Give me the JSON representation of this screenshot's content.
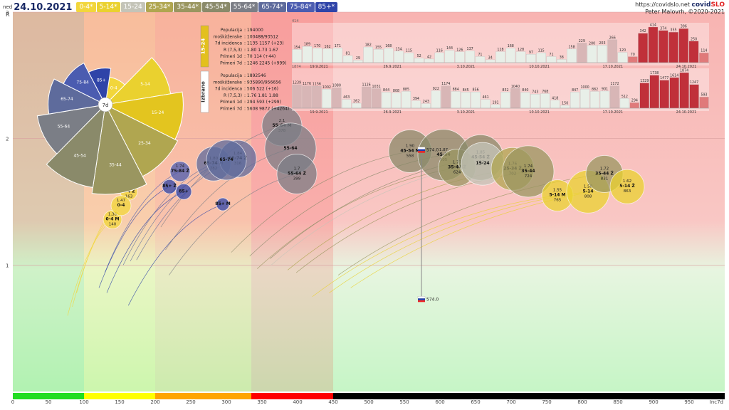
{
  "header": {
    "day": "ned",
    "date": "24.10.2021",
    "age_chips": [
      {
        "label": "0-4*",
        "color": "#f2d63b",
        "fg": "#fff"
      },
      {
        "label": "5-14*",
        "color": "#ead12f",
        "fg": "#fff"
      },
      {
        "label": "15-24",
        "color": "#c4c4b8",
        "fg": "#fff"
      },
      {
        "label": "25-34*",
        "color": "#b0a650",
        "fg": "#fff"
      },
      {
        "label": "35-44*",
        "color": "#9a9660",
        "fg": "#fff"
      },
      {
        "label": "45-54*",
        "color": "#8a8a6a",
        "fg": "#fff"
      },
      {
        "label": "55-64*",
        "color": "#7b7e86",
        "fg": "#fff"
      },
      {
        "label": "65-74*",
        "color": "#5e6b9c",
        "fg": "#fff"
      },
      {
        "label": "75-84*",
        "color": "#4b5cb0",
        "fg": "#fff"
      },
      {
        "label": "85+*",
        "color": "#2f44a8",
        "fg": "#fff"
      }
    ],
    "url": "https://covidslo.net",
    "brand_main": "covid",
    "brand_accent": "SLO",
    "author": "Peter Malovrh, ©2020-2021"
  },
  "chart_data": {
    "type": "scatter",
    "x_axis_label": "Inc7d",
    "y_axis_label": "R",
    "xlim": [
      0,
      1000
    ],
    "ylim": [
      0,
      3
    ],
    "x_ticks": [
      0,
      50,
      100,
      150,
      200,
      250,
      300,
      350,
      400,
      450,
      500,
      550,
      600,
      650,
      700,
      750,
      800,
      850,
      900,
      950
    ],
    "y_ticks": [
      1,
      2,
      3
    ],
    "colors": {
      "r_high": "#f7b0b0",
      "r_low": "#cdf5cd",
      "green": "#22dd22",
      "yellow": "#ffff00",
      "orange": "#ffa500",
      "red": "#ff0000",
      "black": "#000000"
    },
    "incidence_bands": [
      {
        "from": 0,
        "to": 100,
        "color": "#22dd22"
      },
      {
        "from": 100,
        "to": 200,
        "color": "#ffff00"
      },
      {
        "from": 200,
        "to": 335,
        "color": "#ffa500"
      },
      {
        "from": 335,
        "to": 450,
        "color": "#ff0000"
      },
      {
        "from": 450,
        "to": 1000,
        "color": "#000000"
      }
    ],
    "bubbles": [
      {
        "label": "0-4 M",
        "r_value": "1.36",
        "inc": "140",
        "x": 140,
        "y": 1.36,
        "size": 13,
        "color": "#f2d63b"
      },
      {
        "label": "0-4 Ž",
        "r_value": "1.58",
        "inc": "163",
        "x": 163,
        "y": 1.58,
        "size": 12,
        "color": "#f2d63b"
      },
      {
        "label": "0-4",
        "r_value": "1.47",
        "inc": "",
        "x": 152,
        "y": 1.47,
        "size": 14,
        "color": "#f2d63b"
      },
      {
        "label": "75-84 Ž",
        "r_value": "1.74",
        "inc": "",
        "x": 235,
        "y": 1.74,
        "size": 14,
        "color": "#4b5cb0"
      },
      {
        "label": "85+ Ž",
        "r_value": "",
        "inc": "",
        "x": 220,
        "y": 1.62,
        "size": 10,
        "color": "#2f44a8"
      },
      {
        "label": "85+",
        "r_value": "",
        "inc": "",
        "x": 240,
        "y": 1.58,
        "size": 11,
        "color": "#2f44a8"
      },
      {
        "label": "85+ M",
        "r_value": "",
        "inc": "",
        "x": 295,
        "y": 1.48,
        "size": 9,
        "color": "#2f44a8"
      },
      {
        "label": "65-74 M",
        "r_value": "1.80",
        "inc": "282",
        "x": 282,
        "y": 1.8,
        "size": 24,
        "color": "#5e6b9c"
      },
      {
        "label": "65-74 Ž",
        "r_value": "1.84",
        "inc": "316",
        "x": 316,
        "y": 1.84,
        "size": 26,
        "color": "#5e6b9c"
      },
      {
        "label": "65-74",
        "r_value": "",
        "inc": "",
        "x": 300,
        "y": 1.83,
        "size": 28,
        "color": "#5e6b9c"
      },
      {
        "label": "55-64 M",
        "r_value": "2.1",
        "inc": "378",
        "x": 378,
        "y": 2.1,
        "size": 28,
        "color": "#7b7e86"
      },
      {
        "label": "55-64",
        "r_value": "",
        "inc": "",
        "x": 390,
        "y": 1.92,
        "size": 36,
        "color": "#7b7e86"
      },
      {
        "label": "55-64 Ž",
        "r_value": "1.7",
        "inc": "399",
        "x": 399,
        "y": 1.72,
        "size": 28,
        "color": "#7b7e86"
      },
      {
        "label": "45-54 M",
        "r_value": "1.90",
        "inc": "558",
        "x": 558,
        "y": 1.9,
        "size": 30,
        "color": "#8a8a6a"
      },
      {
        "label": "45-54",
        "r_value": "1.87",
        "inc": "605",
        "x": 605,
        "y": 1.87,
        "size": 36,
        "color": "#8a8a6a"
      },
      {
        "label": "35-44 Ž",
        "r_value": "1.77",
        "inc": "624",
        "x": 624,
        "y": 1.77,
        "size": 26,
        "color": "#9a9660"
      },
      {
        "label": "45-54 Ž",
        "r_value": "1.85",
        "inc": "657",
        "x": 657,
        "y": 1.85,
        "size": 32,
        "color": "#8a8a6a"
      },
      {
        "label": "15-24",
        "r_value": "",
        "inc": "",
        "x": 660,
        "y": 1.8,
        "size": 30,
        "color": "#c4c4b8"
      },
      {
        "label": "25-34 Ž",
        "r_value": "1.76",
        "inc": "702",
        "x": 702,
        "y": 1.76,
        "size": 30,
        "color": "#b0a650"
      },
      {
        "label": "35-44",
        "r_value": "1.74",
        "inc": "724",
        "x": 724,
        "y": 1.74,
        "size": 36,
        "color": "#9a9660"
      },
      {
        "label": "5-14 M",
        "r_value": "1.55",
        "inc": "765",
        "x": 765,
        "y": 1.55,
        "size": 22,
        "color": "#ead12f"
      },
      {
        "label": "5-14",
        "r_value": "1.58",
        "inc": "808",
        "x": 808,
        "y": 1.58,
        "size": 30,
        "color": "#ead12f"
      },
      {
        "label": "35-44 Ž",
        "r_value": "1.72",
        "inc": "831",
        "x": 831,
        "y": 1.72,
        "size": 26,
        "color": "#9a9660"
      },
      {
        "label": "5-14 Ž",
        "r_value": "1.62",
        "inc": "863",
        "x": 863,
        "y": 1.62,
        "size": 24,
        "color": "#ead12f"
      }
    ],
    "slovenia_markers": [
      {
        "label": "574.0",
        "x": 574,
        "y": 1.91
      },
      {
        "label": "574.0",
        "x": 574,
        "y": 0.73
      }
    ],
    "pie": {
      "center_label": "7d",
      "slices": [
        {
          "label": "0-4",
          "value": 12,
          "color": "#f2d63b"
        },
        {
          "label": "5-14",
          "value": 38,
          "color": "#ead12f"
        },
        {
          "label": "15-24",
          "value": 46,
          "color": "#e3c51f"
        },
        {
          "label": "25-34",
          "value": 48,
          "color": "#b0a650"
        },
        {
          "label": "35-44",
          "value": 54,
          "color": "#9a9660"
        },
        {
          "label": "45-54",
          "value": 50,
          "color": "#8a8a6a"
        },
        {
          "label": "55-64",
          "value": 40,
          "color": "#7b7e86"
        },
        {
          "label": "65-74",
          "value": 32,
          "color": "#5e6b9c"
        },
        {
          "label": "75-84",
          "value": 25,
          "color": "#4b5cb0"
        },
        {
          "label": "85+",
          "value": 18,
          "color": "#2f44a8"
        }
      ]
    },
    "panels": [
      {
        "tag": "15-24",
        "tag_color": "#e3c01e",
        "top_label": "414",
        "stats": [
          {
            "k": "Populacija",
            "v": "194000"
          },
          {
            "k": "moški/ženske",
            "v": "100488/93512"
          },
          {
            "k": "7d incidenca",
            "v": "1135 1157 (+23)"
          },
          {
            "k": "R (7,5,3)",
            "v": "1.80 1.73 1.67"
          },
          {
            "k": "Primeri 1d",
            "v": "70 114 (+44)"
          },
          {
            "k": "Primeri 7d",
            "v": "1246 2245 (+999)"
          }
        ],
        "values": [
          154,
          189,
          170,
          162,
          171,
          81,
          29,
          182,
          155,
          168,
          134,
          115,
          52,
          42,
          116,
          144,
          126,
          137,
          71,
          34,
          128,
          168,
          128,
          97,
          115,
          71,
          38,
          158,
          229,
          200,
          203,
          266,
          120,
          70,
          342,
          414,
          374,
          355,
          396,
          250,
          114
        ],
        "dates": [
          "19.9.2021",
          "26.9.2021",
          "3.10.2021",
          "10.10.2021",
          "17.10.2021",
          "24.10.2021"
        ]
      },
      {
        "tag": "Izbrano",
        "tag_color": "#ffffff",
        "top_label": "1874",
        "stats": [
          {
            "k": "Populacija",
            "v": "1892546"
          },
          {
            "k": "moški/ženske",
            "v": "935890/956656"
          },
          {
            "k": "7d incidenca",
            "v": "506 522 (+16)"
          },
          {
            "k": "R (7,5,3)",
            "v": "1.76 1.81 1.88"
          },
          {
            "k": "Primeri 1d",
            "v": "294 593 (+299)"
          },
          {
            "k": "Primeri 7d",
            "v": "5608 9872 (+4264)"
          }
        ],
        "values": [
          1239,
          1176,
          1156,
          1002,
          1080,
          463,
          262,
          1126,
          1031,
          844,
          808,
          885,
          394,
          243,
          922,
          1174,
          884,
          845,
          856,
          461,
          191,
          852,
          1040,
          840,
          743,
          768,
          418,
          150,
          847,
          1000,
          882,
          901,
          1172,
          512,
          294,
          1329,
          1738,
          1477,
          1614,
          1874,
          1247,
          593
        ],
        "dates": [
          "19.9.2021",
          "26.9.2021",
          "3.10.2021",
          "10.10.2021",
          "17.10.2021",
          "24.10.2021"
        ]
      }
    ]
  }
}
